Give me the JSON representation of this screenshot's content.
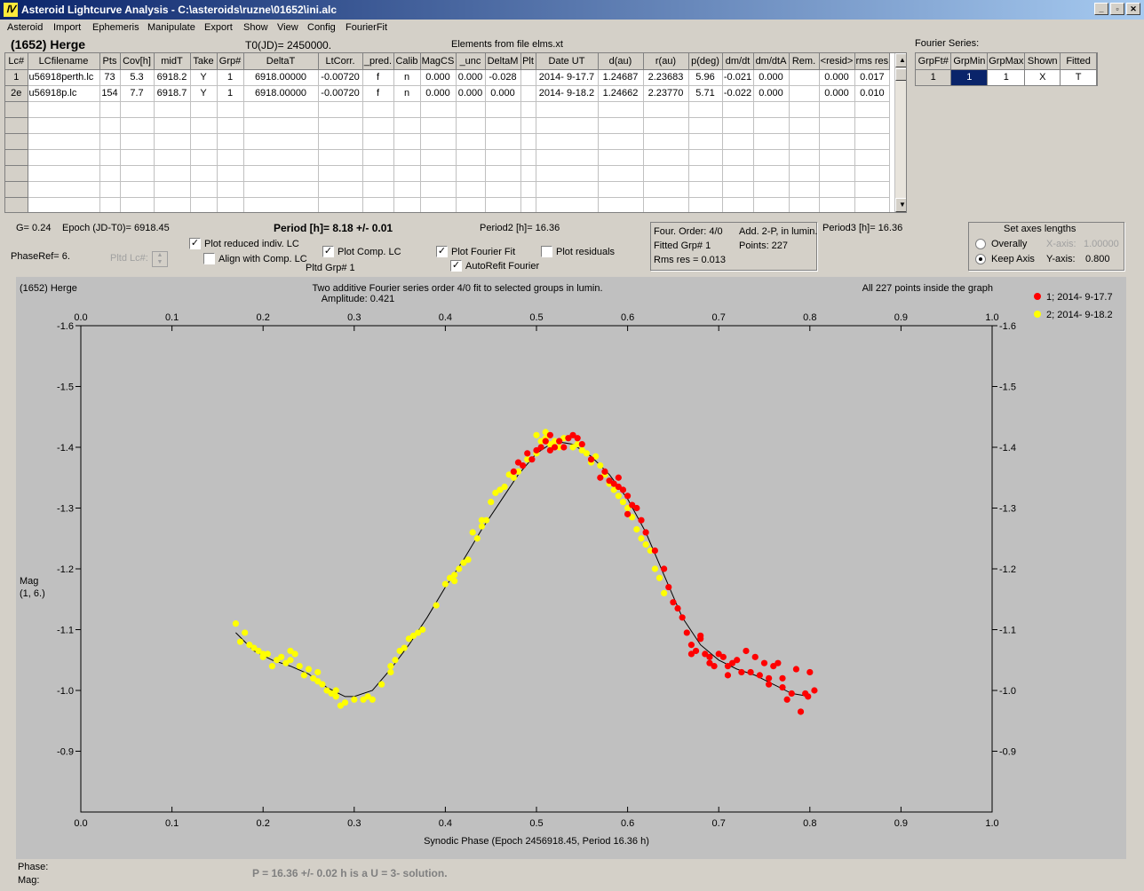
{
  "window": {
    "title": "Asteroid Lightcurve Analysis - C:\\asteroids\\ruzne\\01652\\ini.alc",
    "min": "_",
    "max": "▫",
    "close": "✕"
  },
  "menu": [
    "Asteroid",
    "Import",
    "Ephemeris",
    "Manipulate",
    "Export",
    "Show",
    "View",
    "Config",
    "FourierFit"
  ],
  "header": {
    "asteroid": "(1652) Herge",
    "t0": "T0(JD)= 2450000.",
    "elements": "Elements from file elms.xt",
    "fourier_label": "Fourier Series:"
  },
  "table": {
    "columns": [
      "Lc#",
      "LCfilename",
      "Pts",
      "Cov[h]",
      "midT",
      "Take",
      "Grp#",
      "DeltaT",
      "LtCorr.",
      "_pred.",
      "Calib",
      "MagCS",
      "_unc",
      "DeltaM",
      "Plt",
      "Date UT",
      "d(au)",
      "r(au)",
      "p(deg)",
      "dm/dt",
      "dm/dtA",
      "Rem.",
      "<resid>",
      "rms res"
    ],
    "rows": [
      [
        "1",
        "u56918perth.lc",
        "73",
        "5.3",
        "6918.2",
        "Y",
        "1",
        "6918.00000",
        "-0.00720",
        "f",
        "n",
        "0.000",
        "0.000",
        "-0.028",
        "",
        "2014- 9-17.7",
        "1.24687",
        "2.23683",
        "5.96",
        "-0.021",
        "0.000",
        "",
        "0.000",
        "0.017"
      ],
      [
        "2e",
        "u56918p.lc",
        "154",
        "7.7",
        "6918.7",
        "Y",
        "1",
        "6918.00000",
        "-0.00720",
        "f",
        "n",
        "0.000",
        "0.000",
        "0.000",
        "",
        "2014- 9-18.2",
        "1.24662",
        "2.23770",
        "5.71",
        "-0.022",
        "0.000",
        "",
        "0.000",
        "0.010"
      ]
    ]
  },
  "fourier_table": {
    "columns": [
      "GrpFt#",
      "GrpMin",
      "GrpMax",
      "Shown",
      "Fitted"
    ],
    "row": [
      "1",
      "1",
      "1",
      "X",
      "T"
    ]
  },
  "controls": {
    "g": "G= 0.24",
    "epoch": "Epoch (JD-T0)= 6918.45",
    "period": "Period [h]= 8.18 +/- 0.01",
    "period2": "Period2 [h]= 16.36",
    "period3": "Period3 [h]= 16.36",
    "phaseref": "PhaseRef= 6.",
    "pltd_lc": "Pltd Lc#:",
    "pltd_grp": "Pltd Grp#  1",
    "plot_reduced": "Plot reduced indiv. LC",
    "align": "Align with Comp. LC",
    "plot_comp": "Plot Comp. LC",
    "plot_fourier": "Plot Fourier Fit",
    "autorefit": "AutoRefit Fourier",
    "plot_resid": "Plot residuals",
    "four_order": "Four. Order:  4/0",
    "add2p": "Add. 2-P, in lumin.",
    "fitted_grp": "Fitted Grp# 1",
    "points": "Points: 227",
    "rms": "Rms res    = 0.013",
    "axes_title": "Set axes lengths",
    "overally": "Overally",
    "keep_axis": "Keep Axis",
    "xaxis_label": "X-axis:",
    "xaxis_val": "1.00000",
    "yaxis_label": "Y-axis:",
    "yaxis_val": "0.800"
  },
  "status": {
    "phase": "Phase:",
    "mag": "Mag:",
    "solution": "P = 16.36 +/- 0.02 h is a U = 3- solution."
  },
  "chart_data": {
    "type": "scatter",
    "title": "Two additive Fourier series order 4/0 fit to selected groups in lumin.",
    "subtitle": "Amplitude: 0.421",
    "name": "(1652) Herge",
    "inside": "All 227 points inside the graph",
    "xlabel": "Synodic Phase (Epoch 2456918.45, Period 16.36 h)",
    "ylabel": "Mag",
    "ylabel2": "(1, 6.)",
    "xlim": [
      0,
      1
    ],
    "ylim": [
      -0.8,
      -1.6
    ],
    "xticks": [
      "0.0",
      "0.1",
      "0.2",
      "0.3",
      "0.4",
      "0.5",
      "0.6",
      "0.7",
      "0.8",
      "0.9",
      "1.0"
    ],
    "yticks": [
      "-1.6",
      "-1.5",
      "-1.4",
      "-1.3",
      "-1.2",
      "-1.1",
      "-1.0",
      "-0.9"
    ],
    "legend": [
      {
        "name": "1; 2014- 9-17.7",
        "color": "#ff0000"
      },
      {
        "name": "2; 2014- 9-18.2",
        "color": "#ffff00"
      }
    ],
    "fit_curve": [
      [
        0.17,
        -1.095
      ],
      [
        0.19,
        -1.065
      ],
      [
        0.21,
        -1.05
      ],
      [
        0.23,
        -1.04
      ],
      [
        0.25,
        -1.027
      ],
      [
        0.27,
        -1.005
      ],
      [
        0.29,
        -0.99
      ],
      [
        0.3,
        -0.99
      ],
      [
        0.32,
        -1.0
      ],
      [
        0.34,
        -1.035
      ],
      [
        0.36,
        -1.075
      ],
      [
        0.38,
        -1.12
      ],
      [
        0.4,
        -1.17
      ],
      [
        0.42,
        -1.215
      ],
      [
        0.44,
        -1.265
      ],
      [
        0.46,
        -1.31
      ],
      [
        0.48,
        -1.355
      ],
      [
        0.5,
        -1.39
      ],
      [
        0.52,
        -1.41
      ],
      [
        0.54,
        -1.405
      ],
      [
        0.56,
        -1.385
      ],
      [
        0.58,
        -1.355
      ],
      [
        0.6,
        -1.315
      ],
      [
        0.62,
        -1.26
      ],
      [
        0.64,
        -1.19
      ],
      [
        0.66,
        -1.12
      ],
      [
        0.68,
        -1.075
      ],
      [
        0.7,
        -1.05
      ],
      [
        0.72,
        -1.035
      ],
      [
        0.74,
        -1.025
      ],
      [
        0.76,
        -1.01
      ],
      [
        0.78,
        -0.995
      ],
      [
        0.8,
        -0.99
      ]
    ],
    "series": [
      {
        "name": "1; 2014- 9-17.7",
        "color": "#ff0000",
        "points": [
          [
            0.475,
            -1.36
          ],
          [
            0.48,
            -1.375
          ],
          [
            0.485,
            -1.37
          ],
          [
            0.49,
            -1.39
          ],
          [
            0.495,
            -1.38
          ],
          [
            0.5,
            -1.395
          ],
          [
            0.505,
            -1.4
          ],
          [
            0.51,
            -1.41
          ],
          [
            0.515,
            -1.395
          ],
          [
            0.52,
            -1.4
          ],
          [
            0.525,
            -1.41
          ],
          [
            0.53,
            -1.4
          ],
          [
            0.535,
            -1.415
          ],
          [
            0.54,
            -1.42
          ],
          [
            0.55,
            -1.405
          ],
          [
            0.56,
            -1.38
          ],
          [
            0.57,
            -1.35
          ],
          [
            0.575,
            -1.36
          ],
          [
            0.58,
            -1.345
          ],
          [
            0.585,
            -1.34
          ],
          [
            0.59,
            -1.335
          ],
          [
            0.595,
            -1.33
          ],
          [
            0.6,
            -1.32
          ],
          [
            0.605,
            -1.305
          ],
          [
            0.61,
            -1.3
          ],
          [
            0.615,
            -1.28
          ],
          [
            0.62,
            -1.26
          ],
          [
            0.63,
            -1.23
          ],
          [
            0.64,
            -1.2
          ],
          [
            0.645,
            -1.17
          ],
          [
            0.65,
            -1.145
          ],
          [
            0.655,
            -1.135
          ],
          [
            0.66,
            -1.12
          ],
          [
            0.665,
            -1.095
          ],
          [
            0.67,
            -1.075
          ],
          [
            0.675,
            -1.065
          ],
          [
            0.68,
            -1.085
          ],
          [
            0.685,
            -1.06
          ],
          [
            0.69,
            -1.045
          ],
          [
            0.695,
            -1.04
          ],
          [
            0.7,
            -1.06
          ],
          [
            0.705,
            -1.055
          ],
          [
            0.71,
            -1.025
          ],
          [
            0.715,
            -1.045
          ],
          [
            0.72,
            -1.05
          ],
          [
            0.725,
            -1.03
          ],
          [
            0.73,
            -1.065
          ],
          [
            0.735,
            -1.03
          ],
          [
            0.74,
            -1.055
          ],
          [
            0.745,
            -1.025
          ],
          [
            0.75,
            -1.045
          ],
          [
            0.755,
            -1.01
          ],
          [
            0.76,
            -1.04
          ],
          [
            0.765,
            -1.045
          ],
          [
            0.77,
            -1.02
          ],
          [
            0.775,
            -0.985
          ],
          [
            0.78,
            -0.995
          ],
          [
            0.785,
            -1.035
          ],
          [
            0.79,
            -0.965
          ],
          [
            0.795,
            -0.995
          ],
          [
            0.8,
            -1.03
          ],
          [
            0.805,
            -1.0
          ],
          [
            0.798,
            -0.99
          ],
          [
            0.68,
            -1.09
          ],
          [
            0.71,
            -1.04
          ],
          [
            0.755,
            -1.02
          ],
          [
            0.67,
            -1.06
          ],
          [
            0.545,
            -1.415
          ],
          [
            0.515,
            -1.42
          ],
          [
            0.6,
            -1.29
          ],
          [
            0.59,
            -1.35
          ],
          [
            0.77,
            -1.005
          ],
          [
            0.69,
            -1.055
          ]
        ]
      },
      {
        "name": "2; 2014- 9-18.2",
        "color": "#ffff00",
        "points": [
          [
            0.17,
            -1.11
          ],
          [
            0.175,
            -1.08
          ],
          [
            0.18,
            -1.095
          ],
          [
            0.185,
            -1.075
          ],
          [
            0.19,
            -1.07
          ],
          [
            0.195,
            -1.065
          ],
          [
            0.2,
            -1.06
          ],
          [
            0.205,
            -1.06
          ],
          [
            0.21,
            -1.04
          ],
          [
            0.215,
            -1.05
          ],
          [
            0.22,
            -1.055
          ],
          [
            0.225,
            -1.045
          ],
          [
            0.23,
            -1.05
          ],
          [
            0.235,
            -1.06
          ],
          [
            0.24,
            -1.04
          ],
          [
            0.245,
            -1.025
          ],
          [
            0.25,
            -1.035
          ],
          [
            0.255,
            -1.02
          ],
          [
            0.26,
            -1.03
          ],
          [
            0.265,
            -1.01
          ],
          [
            0.27,
            -1.0
          ],
          [
            0.275,
            -0.995
          ],
          [
            0.28,
            -1.0
          ],
          [
            0.285,
            -0.975
          ],
          [
            0.29,
            -0.98
          ],
          [
            0.3,
            -0.985
          ],
          [
            0.315,
            -0.99
          ],
          [
            0.32,
            -0.985
          ],
          [
            0.33,
            -1.01
          ],
          [
            0.34,
            -1.03
          ],
          [
            0.345,
            -1.05
          ],
          [
            0.35,
            -1.065
          ],
          [
            0.355,
            -1.07
          ],
          [
            0.36,
            -1.085
          ],
          [
            0.365,
            -1.09
          ],
          [
            0.37,
            -1.095
          ],
          [
            0.375,
            -1.1
          ],
          [
            0.39,
            -1.14
          ],
          [
            0.4,
            -1.175
          ],
          [
            0.405,
            -1.185
          ],
          [
            0.41,
            -1.19
          ],
          [
            0.415,
            -1.2
          ],
          [
            0.42,
            -1.21
          ],
          [
            0.425,
            -1.215
          ],
          [
            0.43,
            -1.26
          ],
          [
            0.435,
            -1.25
          ],
          [
            0.44,
            -1.27
          ],
          [
            0.445,
            -1.28
          ],
          [
            0.45,
            -1.31
          ],
          [
            0.455,
            -1.325
          ],
          [
            0.46,
            -1.33
          ],
          [
            0.465,
            -1.335
          ],
          [
            0.47,
            -1.355
          ],
          [
            0.475,
            -1.35
          ],
          [
            0.48,
            -1.36
          ],
          [
            0.49,
            -1.38
          ],
          [
            0.5,
            -1.39
          ],
          [
            0.505,
            -1.41
          ],
          [
            0.51,
            -1.415
          ],
          [
            0.515,
            -1.405
          ],
          [
            0.52,
            -1.41
          ],
          [
            0.525,
            -1.4
          ],
          [
            0.53,
            -1.415
          ],
          [
            0.54,
            -1.4
          ],
          [
            0.545,
            -1.405
          ],
          [
            0.55,
            -1.395
          ],
          [
            0.555,
            -1.39
          ],
          [
            0.56,
            -1.375
          ],
          [
            0.565,
            -1.385
          ],
          [
            0.57,
            -1.37
          ],
          [
            0.575,
            -1.355
          ],
          [
            0.58,
            -1.34
          ],
          [
            0.585,
            -1.33
          ],
          [
            0.59,
            -1.32
          ],
          [
            0.595,
            -1.31
          ],
          [
            0.6,
            -1.3
          ],
          [
            0.605,
            -1.285
          ],
          [
            0.61,
            -1.265
          ],
          [
            0.615,
            -1.25
          ],
          [
            0.62,
            -1.24
          ],
          [
            0.625,
            -1.23
          ],
          [
            0.63,
            -1.2
          ],
          [
            0.635,
            -1.185
          ],
          [
            0.64,
            -1.16
          ],
          [
            0.5,
            -1.42
          ],
          [
            0.51,
            -1.425
          ],
          [
            0.44,
            -1.28
          ],
          [
            0.41,
            -1.18
          ],
          [
            0.34,
            -1.04
          ],
          [
            0.2,
            -1.055
          ],
          [
            0.23,
            -1.065
          ],
          [
            0.26,
            -1.015
          ],
          [
            0.28,
            -0.99
          ],
          [
            0.31,
            -0.985
          ]
        ]
      }
    ]
  }
}
